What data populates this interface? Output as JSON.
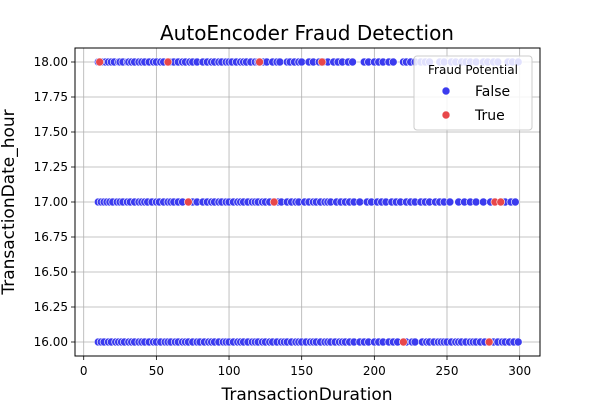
{
  "chart_data": {
    "type": "scatter",
    "title": "AutoEncoder Fraud Detection",
    "xlabel": "TransactionDuration",
    "ylabel": "TransactionDate_hour",
    "xlim": [
      -6,
      314
    ],
    "ylim": [
      15.9,
      18.1
    ],
    "xticks": [
      0,
      50,
      100,
      150,
      200,
      250,
      300
    ],
    "yticks": [
      16.0,
      16.25,
      16.5,
      16.75,
      17.0,
      17.25,
      17.5,
      17.75,
      18.0
    ],
    "grid": true,
    "legend": {
      "title": "Fraud Potential",
      "placement": "top-right"
    },
    "colors": {
      "False": "#3b3bee",
      "True": "#e8474a"
    },
    "series": [
      {
        "name": "False",
        "points": [
          [
            10,
            18
          ],
          [
            12,
            18
          ],
          [
            13,
            18
          ],
          [
            15,
            18
          ],
          [
            17,
            18
          ],
          [
            19,
            18
          ],
          [
            21,
            18
          ],
          [
            24,
            18
          ],
          [
            25,
            18
          ],
          [
            27,
            18
          ],
          [
            30,
            18
          ],
          [
            31,
            18
          ],
          [
            33,
            18
          ],
          [
            35,
            18
          ],
          [
            38,
            18
          ],
          [
            40,
            18
          ],
          [
            42,
            18
          ],
          [
            45,
            18
          ],
          [
            48,
            18
          ],
          [
            50,
            18
          ],
          [
            53,
            18
          ],
          [
            55,
            18
          ],
          [
            60,
            18
          ],
          [
            62,
            18
          ],
          [
            65,
            18
          ],
          [
            68,
            18
          ],
          [
            70,
            18
          ],
          [
            73,
            18
          ],
          [
            75,
            18
          ],
          [
            78,
            18
          ],
          [
            82,
            18
          ],
          [
            85,
            18
          ],
          [
            88,
            18
          ],
          [
            90,
            18
          ],
          [
            93,
            18
          ],
          [
            95,
            18
          ],
          [
            98,
            18
          ],
          [
            100,
            18
          ],
          [
            102,
            18
          ],
          [
            105,
            18
          ],
          [
            108,
            18
          ],
          [
            110,
            18
          ],
          [
            112,
            18
          ],
          [
            115,
            18
          ],
          [
            118,
            18
          ],
          [
            120,
            18
          ],
          [
            124,
            18
          ],
          [
            126,
            18
          ],
          [
            130,
            18
          ],
          [
            133,
            18
          ],
          [
            135,
            18
          ],
          [
            140,
            18
          ],
          [
            142,
            18
          ],
          [
            145,
            18
          ],
          [
            148,
            18
          ],
          [
            150,
            18
          ],
          [
            155,
            18
          ],
          [
            158,
            18
          ],
          [
            162,
            18
          ],
          [
            165,
            18
          ],
          [
            168,
            18
          ],
          [
            172,
            18
          ],
          [
            175,
            18
          ],
          [
            178,
            18
          ],
          [
            182,
            18
          ],
          [
            185,
            18
          ],
          [
            193,
            18
          ],
          [
            196,
            18
          ],
          [
            200,
            18
          ],
          [
            203,
            18
          ],
          [
            206,
            18
          ],
          [
            210,
            18
          ],
          [
            213,
            18
          ],
          [
            220,
            18
          ],
          [
            222,
            18
          ],
          [
            225,
            18
          ],
          [
            228,
            18
          ],
          [
            232,
            18
          ],
          [
            235,
            18
          ],
          [
            238,
            18
          ],
          [
            245,
            18
          ],
          [
            248,
            18
          ],
          [
            253,
            18
          ],
          [
            256,
            18
          ],
          [
            260,
            18
          ],
          [
            263,
            18
          ],
          [
            266,
            18
          ],
          [
            270,
            18
          ],
          [
            275,
            18
          ],
          [
            278,
            18
          ],
          [
            282,
            18
          ],
          [
            285,
            18
          ],
          [
            292,
            18
          ],
          [
            295,
            18
          ],
          [
            299,
            18
          ],
          [
            10,
            17
          ],
          [
            12,
            17
          ],
          [
            14,
            17
          ],
          [
            16,
            17
          ],
          [
            18,
            17
          ],
          [
            20,
            17
          ],
          [
            23,
            17
          ],
          [
            25,
            17
          ],
          [
            27,
            17
          ],
          [
            30,
            17
          ],
          [
            32,
            17
          ],
          [
            35,
            17
          ],
          [
            38,
            17
          ],
          [
            40,
            17
          ],
          [
            42,
            17
          ],
          [
            44,
            17
          ],
          [
            47,
            17
          ],
          [
            50,
            17
          ],
          [
            52,
            17
          ],
          [
            55,
            17
          ],
          [
            58,
            17
          ],
          [
            60,
            17
          ],
          [
            62,
            17
          ],
          [
            65,
            17
          ],
          [
            68,
            17
          ],
          [
            75,
            17
          ],
          [
            78,
            17
          ],
          [
            82,
            17
          ],
          [
            85,
            17
          ],
          [
            88,
            17
          ],
          [
            90,
            17
          ],
          [
            93,
            17
          ],
          [
            95,
            17
          ],
          [
            98,
            17
          ],
          [
            100,
            17
          ],
          [
            103,
            17
          ],
          [
            106,
            17
          ],
          [
            108,
            17
          ],
          [
            110,
            17
          ],
          [
            113,
            17
          ],
          [
            116,
            17
          ],
          [
            118,
            17
          ],
          [
            120,
            17
          ],
          [
            123,
            17
          ],
          [
            125,
            17
          ],
          [
            128,
            17
          ],
          [
            134,
            17
          ],
          [
            136,
            17
          ],
          [
            140,
            17
          ],
          [
            143,
            17
          ],
          [
            146,
            17
          ],
          [
            148,
            17
          ],
          [
            152,
            17
          ],
          [
            155,
            17
          ],
          [
            158,
            17
          ],
          [
            160,
            17
          ],
          [
            163,
            17
          ],
          [
            166,
            17
          ],
          [
            168,
            17
          ],
          [
            170,
            17
          ],
          [
            174,
            17
          ],
          [
            177,
            17
          ],
          [
            180,
            17
          ],
          [
            183,
            17
          ],
          [
            186,
            17
          ],
          [
            190,
            17
          ],
          [
            195,
            17
          ],
          [
            198,
            17
          ],
          [
            202,
            17
          ],
          [
            205,
            17
          ],
          [
            208,
            17
          ],
          [
            212,
            17
          ],
          [
            215,
            17
          ],
          [
            218,
            17
          ],
          [
            222,
            17
          ],
          [
            225,
            17
          ],
          [
            228,
            17
          ],
          [
            232,
            17
          ],
          [
            235,
            17
          ],
          [
            238,
            17
          ],
          [
            242,
            17
          ],
          [
            245,
            17
          ],
          [
            248,
            17
          ],
          [
            252,
            17
          ],
          [
            258,
            17
          ],
          [
            262,
            17
          ],
          [
            266,
            17
          ],
          [
            270,
            17
          ],
          [
            275,
            17
          ],
          [
            280,
            17
          ],
          [
            290,
            17
          ],
          [
            294,
            17
          ],
          [
            297,
            17
          ],
          [
            10,
            16
          ],
          [
            12,
            16
          ],
          [
            14,
            16
          ],
          [
            17,
            16
          ],
          [
            19,
            16
          ],
          [
            22,
            16
          ],
          [
            24,
            16
          ],
          [
            26,
            16
          ],
          [
            28,
            16
          ],
          [
            31,
            16
          ],
          [
            33,
            16
          ],
          [
            35,
            16
          ],
          [
            38,
            16
          ],
          [
            40,
            16
          ],
          [
            42,
            16
          ],
          [
            45,
            16
          ],
          [
            48,
            16
          ],
          [
            50,
            16
          ],
          [
            53,
            16
          ],
          [
            56,
            16
          ],
          [
            58,
            16
          ],
          [
            60,
            16
          ],
          [
            63,
            16
          ],
          [
            65,
            16
          ],
          [
            68,
            16
          ],
          [
            70,
            16
          ],
          [
            72,
            16
          ],
          [
            75,
            16
          ],
          [
            78,
            16
          ],
          [
            80,
            16
          ],
          [
            83,
            16
          ],
          [
            86,
            16
          ],
          [
            88,
            16
          ],
          [
            90,
            16
          ],
          [
            93,
            16
          ],
          [
            96,
            16
          ],
          [
            98,
            16
          ],
          [
            100,
            16
          ],
          [
            103,
            16
          ],
          [
            106,
            16
          ],
          [
            108,
            16
          ],
          [
            110,
            16
          ],
          [
            113,
            16
          ],
          [
            116,
            16
          ],
          [
            118,
            16
          ],
          [
            120,
            16
          ],
          [
            123,
            16
          ],
          [
            125,
            16
          ],
          [
            128,
            16
          ],
          [
            130,
            16
          ],
          [
            133,
            16
          ],
          [
            136,
            16
          ],
          [
            138,
            16
          ],
          [
            140,
            16
          ],
          [
            143,
            16
          ],
          [
            146,
            16
          ],
          [
            148,
            16
          ],
          [
            150,
            16
          ],
          [
            153,
            16
          ],
          [
            156,
            16
          ],
          [
            158,
            16
          ],
          [
            160,
            16
          ],
          [
            163,
            16
          ],
          [
            166,
            16
          ],
          [
            168,
            16
          ],
          [
            170,
            16
          ],
          [
            173,
            16
          ],
          [
            176,
            16
          ],
          [
            178,
            16
          ],
          [
            180,
            16
          ],
          [
            183,
            16
          ],
          [
            186,
            16
          ],
          [
            190,
            16
          ],
          [
            193,
            16
          ],
          [
            196,
            16
          ],
          [
            200,
            16
          ],
          [
            203,
            16
          ],
          [
            206,
            16
          ],
          [
            210,
            16
          ],
          [
            213,
            16
          ],
          [
            216,
            16
          ],
          [
            222,
            16
          ],
          [
            226,
            16
          ],
          [
            228,
            16
          ],
          [
            233,
            16
          ],
          [
            236,
            16
          ],
          [
            238,
            16
          ],
          [
            241,
            16
          ],
          [
            244,
            16
          ],
          [
            246,
            16
          ],
          [
            248,
            16
          ],
          [
            250,
            16
          ],
          [
            253,
            16
          ],
          [
            256,
            16
          ],
          [
            258,
            16
          ],
          [
            260,
            16
          ],
          [
            263,
            16
          ],
          [
            266,
            16
          ],
          [
            268,
            16
          ],
          [
            270,
            16
          ],
          [
            273,
            16
          ],
          [
            276,
            16
          ],
          [
            282,
            16
          ],
          [
            285,
            16
          ],
          [
            288,
            16
          ],
          [
            290,
            16
          ],
          [
            293,
            16
          ],
          [
            296,
            16
          ],
          [
            299,
            16
          ]
        ]
      },
      {
        "name": "True",
        "points": [
          [
            11,
            18
          ],
          [
            58,
            18
          ],
          [
            121,
            18
          ],
          [
            164,
            18
          ],
          [
            72,
            17
          ],
          [
            131,
            17
          ],
          [
            283,
            17
          ],
          [
            287,
            17
          ],
          [
            220,
            16
          ],
          [
            279,
            16
          ]
        ]
      }
    ]
  }
}
